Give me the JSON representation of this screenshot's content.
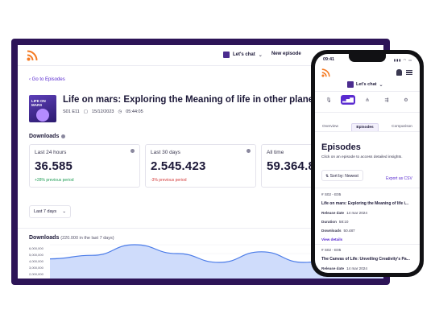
{
  "desktop": {
    "header": {
      "show_name": "Let's chat",
      "new_episode": "New episode"
    },
    "back_link": "Go to Episodes",
    "episode": {
      "cover_text": "LIFE ON MARS",
      "title": "Life on mars: Exploring the Meaning of life in other planets",
      "code": "S01 E11",
      "date": "15/12/2023",
      "duration": "05:44:05"
    },
    "downloads_title": "Downloads",
    "cards": [
      {
        "label": "Last 24 hours",
        "value": "36.585",
        "delta": "+28%",
        "delta_text": "previous period"
      },
      {
        "label": "Last 30 days",
        "value": "2.545.423",
        "delta": "-3%",
        "delta_text": "previous period"
      },
      {
        "label": "All time",
        "value": "59.364.86"
      }
    ],
    "range_select": "Last 7 days",
    "chart_title": "Downloads",
    "chart_subtitle": "(220.000 in the last 7 days)",
    "y_ticks": [
      "6,000,000",
      "5,000,000",
      "4,000,000",
      "3,000,000",
      "2,000,000"
    ]
  },
  "chart_data": {
    "type": "area",
    "title": "Downloads",
    "subtitle": "(220.000 in the last 7 days)",
    "ylim": [
      2000000,
      6000000
    ],
    "y_ticks": [
      6000000,
      5000000,
      4000000,
      3000000,
      2000000
    ],
    "values": [
      4400000,
      4800000,
      6000000,
      5000000,
      4000000,
      5200000,
      4000000,
      4400000,
      4900000
    ],
    "colors": {
      "line": "#4a7be8",
      "fill": "#cfdcfb"
    }
  },
  "phone": {
    "time": "09:41",
    "status": "▮▮▮ ◠ ▭",
    "show_name": "Let's chat",
    "tabs": [
      "Overview",
      "Episodes",
      "Comparison"
    ],
    "selected_tab": "Episodes",
    "heading": "Episodes",
    "subtitle": "Click on an episode to access detailed insights.",
    "sort": "Sort by: Newest",
    "export": "Export as CSV",
    "episodes": [
      {
        "num": "#  S02 - E05",
        "title": "Life on mars: Exploring the Meaning of life i...",
        "release_label": "Release date",
        "release": "14 mar 2024",
        "duration_label": "Duration",
        "duration": "58:10",
        "downloads_label": "Downloads",
        "downloads": "50.487",
        "link": "View details"
      },
      {
        "num": "#  S02 - E05",
        "title": "The Canvas of Life: Unveiling Creativity's Pa...",
        "release_label": "Release date",
        "release": "14 mar 2024"
      }
    ]
  },
  "colors": {
    "accent": "#5a2bd0",
    "frame": "#2d1457",
    "rss": "#f47a22"
  }
}
